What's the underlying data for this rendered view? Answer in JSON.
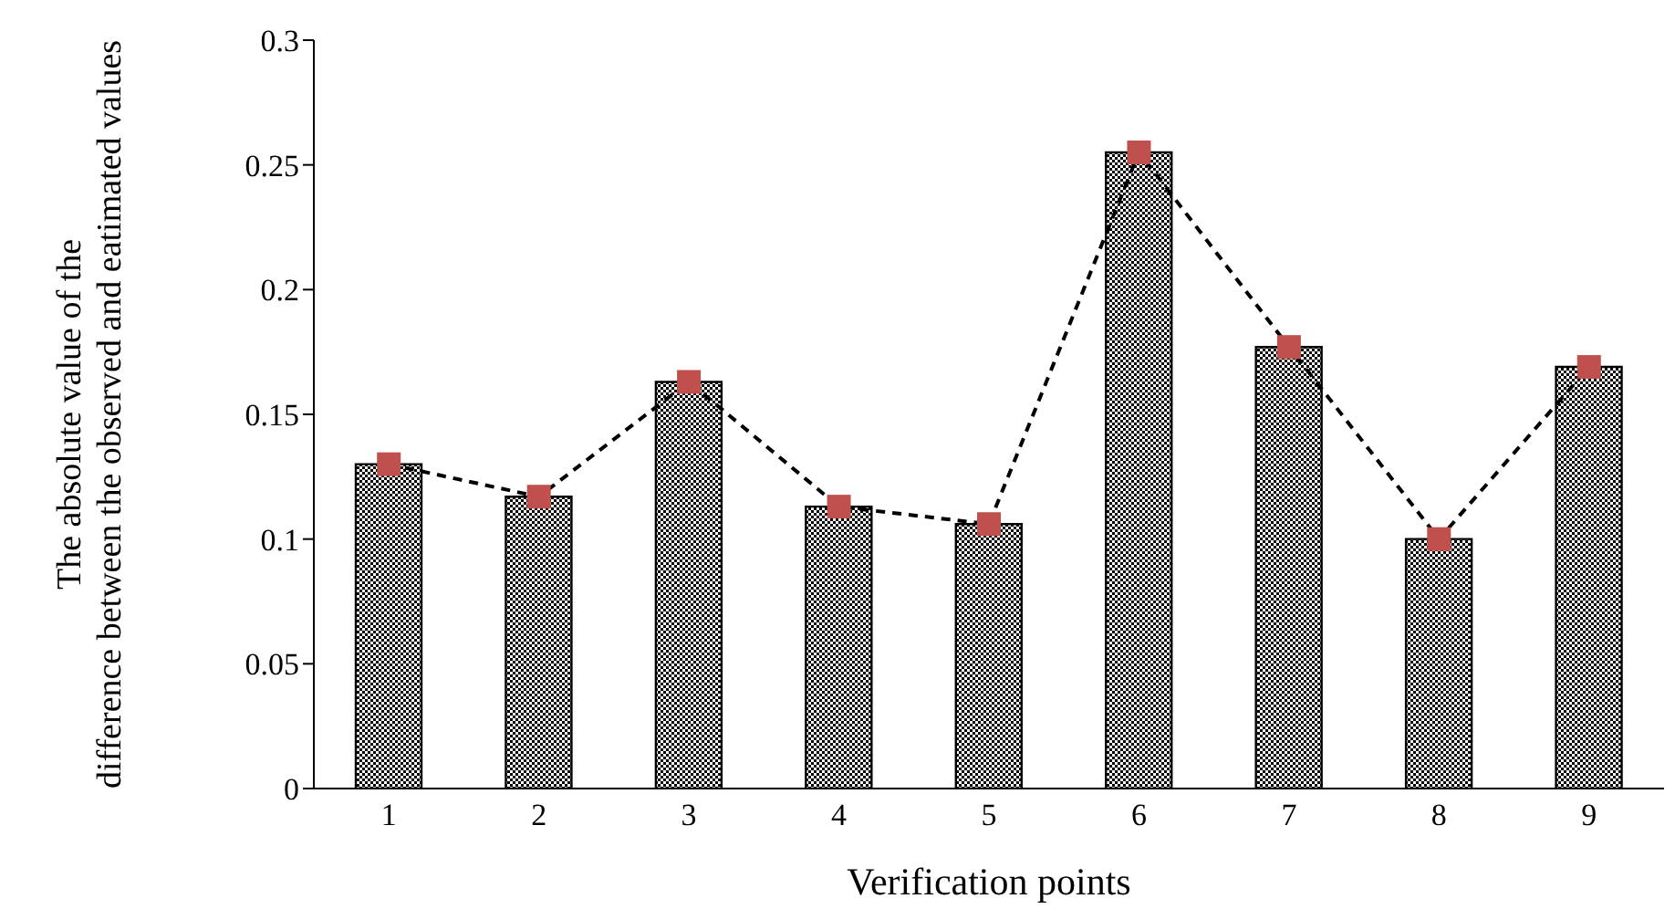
{
  "chart_data": {
    "type": "bar",
    "xlabel": "Verification points",
    "ylabel": "The absolute value of the difference between the observed and eatimated values",
    "categories": [
      "1",
      "2",
      "3",
      "4",
      "5",
      "6",
      "7",
      "8",
      "9"
    ],
    "series": [
      {
        "color": "#000000",
        "values": [
          0.13,
          0.117,
          0.163,
          0.113,
          0.106,
          0.255,
          0.177,
          0.1,
          0.169
        ]
      },
      {
        "type": "line",
        "color": "#c0504d",
        "marker": "square",
        "line_style": "dashed",
        "values": [
          0.13,
          0.117,
          0.163,
          0.113,
          0.106,
          0.255,
          0.177,
          0.1,
          0.169
        ]
      }
    ],
    "ylim": [
      0,
      0.3
    ],
    "yticks": [
      0,
      0.05,
      0.1,
      0.15,
      0.2,
      0.25,
      0.3
    ],
    "grid": false,
    "legend": false
  }
}
